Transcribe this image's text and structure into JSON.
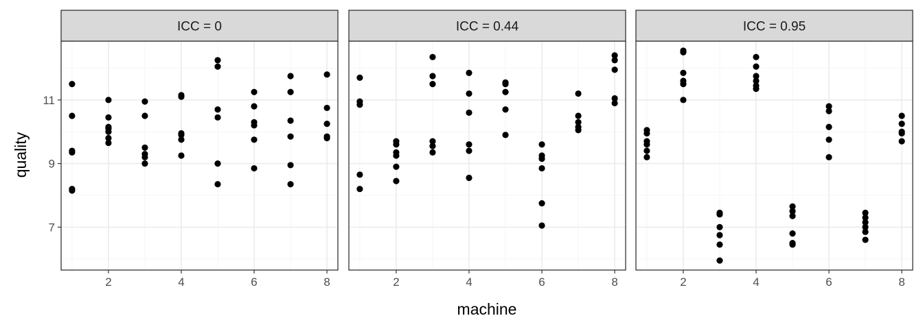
{
  "chart_data": {
    "type": "scatter",
    "xlabel": "machine",
    "ylabel": "quality",
    "xlim": [
      0.7,
      8.3
    ],
    "ylim": [
      5.65,
      12.85
    ],
    "x_ticks": [
      2,
      4,
      6,
      8
    ],
    "y_ticks": [
      7,
      9,
      11
    ],
    "grid": true,
    "colors": {
      "point": "#000000",
      "strip_fill": "#d9d9d9",
      "border": "#333333",
      "grid_major": "#ebebeb",
      "grid_minor": "#f5f5f5"
    },
    "facets": [
      {
        "label": "ICC = 0",
        "points": [
          [
            1,
            11.5
          ],
          [
            1,
            10.5
          ],
          [
            1,
            9.4
          ],
          [
            1,
            9.35
          ],
          [
            1,
            8.2
          ],
          [
            1,
            8.15
          ],
          [
            2,
            11.0
          ],
          [
            2,
            10.45
          ],
          [
            2,
            10.15
          ],
          [
            2,
            10.1
          ],
          [
            2,
            10.0
          ],
          [
            2,
            9.8
          ],
          [
            2,
            9.65
          ],
          [
            3,
            10.95
          ],
          [
            3,
            10.5
          ],
          [
            3,
            9.5
          ],
          [
            3,
            9.3
          ],
          [
            3,
            9.2
          ],
          [
            3,
            9.0
          ],
          [
            4,
            11.15
          ],
          [
            4,
            11.1
          ],
          [
            4,
            9.95
          ],
          [
            4,
            9.9
          ],
          [
            4,
            9.75
          ],
          [
            4,
            9.25
          ],
          [
            5,
            12.25
          ],
          [
            5,
            12.05
          ],
          [
            5,
            10.7
          ],
          [
            5,
            10.45
          ],
          [
            5,
            9.0
          ],
          [
            5,
            8.35
          ],
          [
            6,
            11.25
          ],
          [
            6,
            10.8
          ],
          [
            6,
            10.3
          ],
          [
            6,
            10.2
          ],
          [
            6,
            9.75
          ],
          [
            6,
            8.85
          ],
          [
            7,
            11.75
          ],
          [
            7,
            11.25
          ],
          [
            7,
            10.35
          ],
          [
            7,
            9.85
          ],
          [
            7,
            8.95
          ],
          [
            7,
            8.35
          ],
          [
            8,
            11.8
          ],
          [
            8,
            10.75
          ],
          [
            8,
            10.25
          ],
          [
            8,
            9.85
          ],
          [
            8,
            9.8
          ]
        ]
      },
      {
        "label": "ICC = 0.44",
        "points": [
          [
            1,
            11.7
          ],
          [
            1,
            10.95
          ],
          [
            1,
            10.85
          ],
          [
            1,
            8.65
          ],
          [
            1,
            8.2
          ],
          [
            2,
            9.7
          ],
          [
            2,
            9.6
          ],
          [
            2,
            9.35
          ],
          [
            2,
            9.25
          ],
          [
            2,
            8.9
          ],
          [
            2,
            8.45
          ],
          [
            3,
            12.35
          ],
          [
            3,
            11.75
          ],
          [
            3,
            11.5
          ],
          [
            3,
            9.7
          ],
          [
            3,
            9.55
          ],
          [
            3,
            9.35
          ],
          [
            4,
            11.85
          ],
          [
            4,
            11.2
          ],
          [
            4,
            10.6
          ],
          [
            4,
            9.6
          ],
          [
            4,
            9.4
          ],
          [
            4,
            8.55
          ],
          [
            5,
            11.55
          ],
          [
            5,
            11.5
          ],
          [
            5,
            11.25
          ],
          [
            5,
            10.7
          ],
          [
            5,
            9.9
          ],
          [
            6,
            9.6
          ],
          [
            6,
            9.25
          ],
          [
            6,
            9.15
          ],
          [
            6,
            8.85
          ],
          [
            6,
            7.75
          ],
          [
            6,
            7.05
          ],
          [
            7,
            11.2
          ],
          [
            7,
            10.5
          ],
          [
            7,
            10.3
          ],
          [
            7,
            10.15
          ],
          [
            7,
            10.05
          ],
          [
            8,
            12.4
          ],
          [
            8,
            12.25
          ],
          [
            8,
            11.95
          ],
          [
            8,
            11.05
          ],
          [
            8,
            10.9
          ]
        ]
      },
      {
        "label": "ICC = 0.95",
        "points": [
          [
            1,
            10.05
          ],
          [
            1,
            9.95
          ],
          [
            1,
            9.7
          ],
          [
            1,
            9.6
          ],
          [
            1,
            9.4
          ],
          [
            1,
            9.2
          ],
          [
            2,
            12.55
          ],
          [
            2,
            12.5
          ],
          [
            2,
            11.85
          ],
          [
            2,
            11.6
          ],
          [
            2,
            11.5
          ],
          [
            2,
            11.0
          ],
          [
            3,
            7.45
          ],
          [
            3,
            7.4
          ],
          [
            3,
            7.0
          ],
          [
            3,
            6.75
          ],
          [
            3,
            6.45
          ],
          [
            3,
            5.95
          ],
          [
            4,
            12.35
          ],
          [
            4,
            12.05
          ],
          [
            4,
            11.75
          ],
          [
            4,
            11.6
          ],
          [
            4,
            11.45
          ],
          [
            4,
            11.35
          ],
          [
            5,
            7.65
          ],
          [
            5,
            7.5
          ],
          [
            5,
            7.35
          ],
          [
            5,
            6.8
          ],
          [
            5,
            6.5
          ],
          [
            5,
            6.45
          ],
          [
            6,
            10.8
          ],
          [
            6,
            10.65
          ],
          [
            6,
            10.15
          ],
          [
            6,
            9.75
          ],
          [
            6,
            9.2
          ],
          [
            7,
            7.45
          ],
          [
            7,
            7.3
          ],
          [
            7,
            7.15
          ],
          [
            7,
            7.0
          ],
          [
            7,
            6.85
          ],
          [
            7,
            6.6
          ],
          [
            8,
            10.5
          ],
          [
            8,
            10.25
          ],
          [
            8,
            10.0
          ],
          [
            8,
            9.95
          ],
          [
            8,
            9.7
          ]
        ]
      }
    ]
  }
}
